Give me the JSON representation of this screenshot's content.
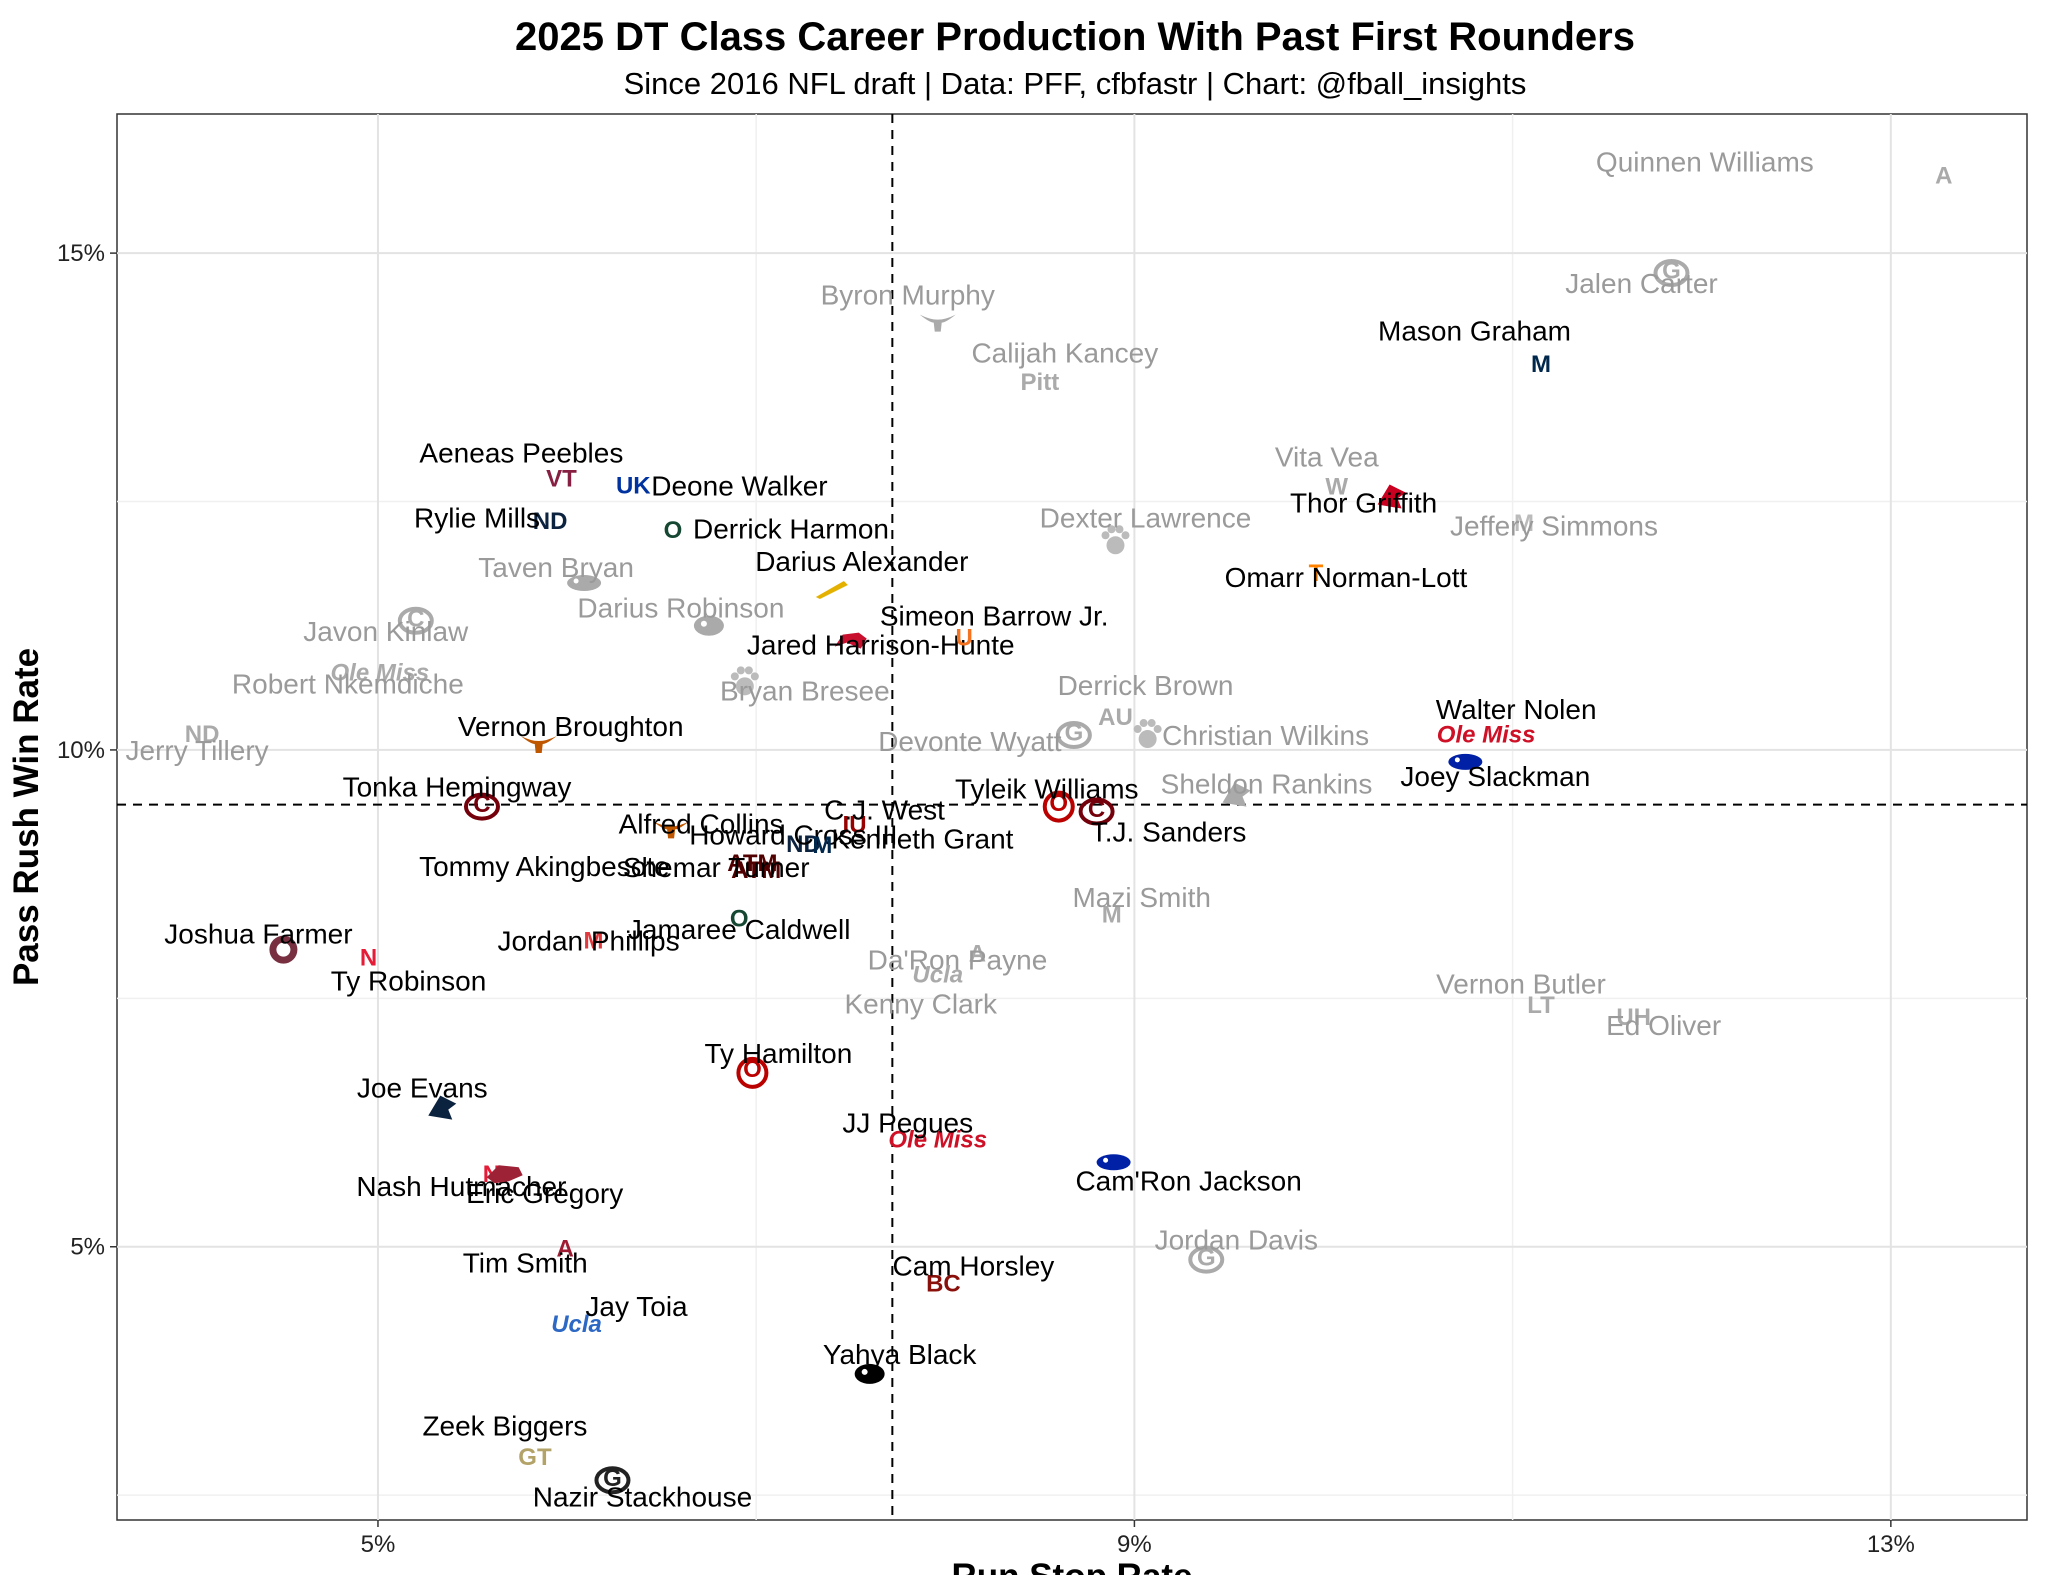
{
  "chart_data": {
    "type": "scatter",
    "title": "2025 DT Class Career Production With Past First Rounders",
    "subtitle": "Since 2016 NFL draft | Data: PFF, cfbfastr | Chart: @fball_insights",
    "xlabel": "Run Stop Rate",
    "ylabel": "Pass Rush Win Rate",
    "xlim": [
      3.62,
      13.72
    ],
    "ylim": [
      2.25,
      16.4
    ],
    "xticks": [
      5,
      9,
      13
    ],
    "xtick_labels": [
      "5%",
      "9%",
      "13%"
    ],
    "yticks": [
      5,
      10,
      15
    ],
    "ytick_labels": [
      "5%",
      "10%",
      "15%"
    ],
    "grid": true,
    "ref_lines": {
      "x": 7.72,
      "y": 9.45
    },
    "colors": {
      "current_class": "#000000",
      "past_first_rounders": "#9a9a9a"
    },
    "points": [
      {
        "name": "Quinnen Williams",
        "x": 13.28,
        "y": 15.8,
        "group": "past",
        "school": "Alabama",
        "logo": "A",
        "logo_color": "#aaaaaa"
      },
      {
        "name": "Byron Murphy",
        "x": 7.96,
        "y": 14.3,
        "group": "past",
        "school": "Texas",
        "logo": "longhorn",
        "logo_color": "#aaaaaa"
      },
      {
        "name": "Jalen Carter",
        "x": 11.84,
        "y": 14.8,
        "group": "past",
        "school": "Georgia",
        "logo": "G",
        "logo_color": "#aaaaaa"
      },
      {
        "name": "Mason Graham",
        "x": 11.15,
        "y": 13.9,
        "group": "current",
        "school": "Michigan",
        "logo": "M",
        "logo_color": "#00274c"
      },
      {
        "name": "Calijah Kancey",
        "x": 8.5,
        "y": 13.68,
        "group": "past",
        "school": "Pitt",
        "logo": "Pitt",
        "logo_color": "#aaaaaa"
      },
      {
        "name": "Aeneas Peebles",
        "x": 5.97,
        "y": 12.75,
        "group": "current",
        "school": "Virginia Tech",
        "logo": "VT",
        "logo_color": "#861f41"
      },
      {
        "name": "Deone Walker",
        "x": 6.35,
        "y": 12.68,
        "group": "current",
        "school": "Kentucky",
        "logo": "UK",
        "logo_color": "#0033a0"
      },
      {
        "name": "Rylie Mills",
        "x": 5.91,
        "y": 12.32,
        "group": "current",
        "school": "Notre Dame",
        "logo": "ND",
        "logo_color": "#0c2340"
      },
      {
        "name": "Derrick Harmon",
        "x": 6.56,
        "y": 12.23,
        "group": "current",
        "school": "Oregon",
        "logo": "O",
        "logo_color": "#154733"
      },
      {
        "name": "Vita Vea",
        "x": 10.07,
        "y": 12.67,
        "group": "past",
        "school": "Washington",
        "logo": "W",
        "logo_color": "#aaaaaa"
      },
      {
        "name": "Thor Griffith",
        "x": 10.36,
        "y": 12.55,
        "group": "current",
        "school": "Louisville",
        "logo": "bird",
        "logo_color": "#c9001f"
      },
      {
        "name": "Dexter Lawrence",
        "x": 8.9,
        "y": 12.1,
        "group": "past",
        "school": "Clemson",
        "logo": "paw",
        "logo_color": "#bbbbbb"
      },
      {
        "name": "Jeffery Simmons",
        "x": 11.06,
        "y": 12.3,
        "group": "past",
        "school": "Mississippi State",
        "logo": "M",
        "logo_color": "#bbbbbb"
      },
      {
        "name": "Omarr Norman-Lott",
        "x": 9.96,
        "y": 11.8,
        "group": "current",
        "school": "Tennessee",
        "logo": "T",
        "logo_color": "#ff8200"
      },
      {
        "name": "Taven Bryan",
        "x": 6.09,
        "y": 11.68,
        "group": "past",
        "school": "Florida",
        "logo": "gator",
        "logo_color": "#aaaaaa"
      },
      {
        "name": "Darius Alexander",
        "x": 7.4,
        "y": 11.62,
        "group": "current",
        "school": "Toledo",
        "logo": "rocket",
        "logo_color": "#e5b100"
      },
      {
        "name": "Javon Kinlaw",
        "x": 5.2,
        "y": 11.3,
        "group": "past",
        "school": "South Carolina",
        "logo": "C",
        "logo_color": "#aaaaaa"
      },
      {
        "name": "Darius Robinson",
        "x": 6.75,
        "y": 11.25,
        "group": "past",
        "school": "Missouri",
        "logo": "tiger",
        "logo_color": "#aaaaaa"
      },
      {
        "name": "Jared Harrison-Hunte",
        "x": 7.5,
        "y": 11.1,
        "group": "current",
        "school": "SMU",
        "logo": "mustang",
        "logo_color": "#c8102e"
      },
      {
        "name": "Simeon Barrow Jr.",
        "x": 8.1,
        "y": 11.15,
        "group": "current",
        "school": "Miami",
        "logo": "U",
        "logo_color": "#f47321"
      },
      {
        "name": "Robert Nkemdiche",
        "x": 5.01,
        "y": 10.75,
        "group": "past",
        "school": "Ole Miss",
        "logo": "Ole Miss",
        "logo_color": "#aaaaaa"
      },
      {
        "name": "Bryan Bresee",
        "x": 6.94,
        "y": 10.68,
        "group": "past",
        "school": "Clemson",
        "logo": "paw",
        "logo_color": "#bbbbbb"
      },
      {
        "name": "Derrick Brown",
        "x": 8.9,
        "y": 10.35,
        "group": "past",
        "school": "Auburn",
        "logo": "AU",
        "logo_color": "#aaaaaa"
      },
      {
        "name": "Jerry Tillery",
        "x": 4.07,
        "y": 10.18,
        "group": "past",
        "school": "Notre Dame",
        "logo": "ND",
        "logo_color": "#aaaaaa"
      },
      {
        "name": "Vernon Broughton",
        "x": 5.85,
        "y": 10.06,
        "group": "current",
        "school": "Texas",
        "logo": "longhorn",
        "logo_color": "#bf5700"
      },
      {
        "name": "Devonte Wyatt",
        "x": 8.68,
        "y": 10.15,
        "group": "past",
        "school": "Georgia",
        "logo": "G",
        "logo_color": "#aaaaaa"
      },
      {
        "name": "Christian Wilkins",
        "x": 9.07,
        "y": 10.15,
        "group": "past",
        "school": "Clemson",
        "logo": "paw",
        "logo_color": "#bbbbbb"
      },
      {
        "name": "Walter Nolen",
        "x": 10.86,
        "y": 10.13,
        "group": "current",
        "school": "Ole Miss",
        "logo": "Ole Miss",
        "logo_color": "#ce1126"
      },
      {
        "name": "Joey Slackman",
        "x": 10.75,
        "y": 9.88,
        "group": "current",
        "school": "Florida",
        "logo": "gator",
        "logo_color": "#0021a5"
      },
      {
        "name": "Tonka Hemingway",
        "x": 5.55,
        "y": 9.43,
        "group": "current",
        "school": "South Carolina",
        "logo": "C",
        "logo_color": "#73000a"
      },
      {
        "name": "Sheldon Rankins",
        "x": 9.54,
        "y": 9.55,
        "group": "past",
        "school": "Louisville",
        "logo": "bird",
        "logo_color": "#aaaaaa"
      },
      {
        "name": "Tyleik Williams",
        "x": 8.6,
        "y": 9.43,
        "group": "current",
        "school": "Ohio State",
        "logo": "OSU",
        "logo_color": "#bb0000"
      },
      {
        "name": "T.J. Sanders",
        "x": 8.8,
        "y": 9.38,
        "group": "current",
        "school": "South Carolina",
        "logo": "C",
        "logo_color": "#73000a"
      },
      {
        "name": "Alfred Collins",
        "x": 6.55,
        "y": 9.2,
        "group": "current",
        "school": "Texas",
        "logo": "longhorn",
        "logo_color": "#bf5700"
      },
      {
        "name": "C.J. West",
        "x": 7.52,
        "y": 9.27,
        "group": "current",
        "school": "Indiana",
        "logo": "IU",
        "logo_color": "#990000"
      },
      {
        "name": "Howard Cross III",
        "x": 7.25,
        "y": 9.07,
        "group": "current",
        "school": "Notre Dame",
        "logo": "ND",
        "logo_color": "#0c2340"
      },
      {
        "name": "Kenneth Grant",
        "x": 7.35,
        "y": 9.06,
        "group": "current",
        "school": "Michigan",
        "logo": "M",
        "logo_color": "#00274c"
      },
      {
        "name": "Tommy Akingbesote",
        "x": 6.98,
        "y": 8.85,
        "group": "current",
        "school": "Texas A&M",
        "logo": "ATM",
        "logo_color": "#500000"
      },
      {
        "name": "Shemar Turner",
        "x": 7.0,
        "y": 8.78,
        "group": "current",
        "school": "Texas A&M",
        "logo": "ATM",
        "logo_color": "#500000"
      },
      {
        "name": "Mazi Smith",
        "x": 8.88,
        "y": 8.36,
        "group": "past",
        "school": "Michigan",
        "logo": "M",
        "logo_color": "#aaaaaa"
      },
      {
        "name": "Jamaree Caldwell",
        "x": 6.91,
        "y": 8.32,
        "group": "current",
        "school": "Oregon",
        "logo": "O",
        "logo_color": "#154733"
      },
      {
        "name": "Joshua Farmer",
        "x": 4.5,
        "y": 7.99,
        "group": "current",
        "school": "Florida State",
        "logo": "FSU",
        "logo_color": "#782f40"
      },
      {
        "name": "Ty Robinson",
        "x": 4.95,
        "y": 7.93,
        "group": "current",
        "school": "Nebraska",
        "logo": "N",
        "logo_color": "#e41c38"
      },
      {
        "name": "Jordan Phillips",
        "x": 6.14,
        "y": 8.1,
        "group": "current",
        "school": "Maryland",
        "logo": "M",
        "logo_color": "#e03a3e"
      },
      {
        "name": "Da'Ron Payne",
        "x": 8.17,
        "y": 7.97,
        "group": "past",
        "school": "Alabama",
        "logo": "A",
        "logo_color": "#aaaaaa"
      },
      {
        "name": "Kenny Clark",
        "x": 7.96,
        "y": 7.72,
        "group": "past",
        "school": "UCLA",
        "logo": "Ucla",
        "logo_color": "#aaaaaa"
      },
      {
        "name": "Vernon Butler",
        "x": 11.15,
        "y": 7.45,
        "group": "past",
        "school": "Louisiana Tech",
        "logo": "LT",
        "logo_color": "#aaaaaa"
      },
      {
        "name": "Ed Oliver",
        "x": 11.64,
        "y": 7.33,
        "group": "past",
        "school": "Houston",
        "logo": "UH",
        "logo_color": "#aaaaaa"
      },
      {
        "name": "Ty Hamilton",
        "x": 6.98,
        "y": 6.75,
        "group": "current",
        "school": "Ohio State",
        "logo": "OSU",
        "logo_color": "#bb0000"
      },
      {
        "name": "Joe Evans",
        "x": 5.34,
        "y": 6.4,
        "group": "current",
        "school": "UTSA",
        "logo": "bird",
        "logo_color": "#0c2340"
      },
      {
        "name": "JJ Pegues",
        "x": 7.96,
        "y": 6.05,
        "group": "current",
        "school": "Ole Miss",
        "logo": "Ole Miss",
        "logo_color": "#ce1126"
      },
      {
        "name": "Nash Hutmacher",
        "x": 5.6,
        "y": 5.75,
        "group": "current",
        "school": "Nebraska",
        "logo": "N",
        "logo_color": "#e41c38"
      },
      {
        "name": "Cam'Ron Jackson",
        "x": 8.89,
        "y": 5.85,
        "group": "current",
        "school": "Florida",
        "logo": "gator",
        "logo_color": "#0021a5"
      },
      {
        "name": "Eric Gregory",
        "x": 5.67,
        "y": 5.74,
        "group": "current",
        "school": "Arkansas",
        "logo": "hog",
        "logo_color": "#9d2235"
      },
      {
        "name": "Jordan Davis",
        "x": 9.38,
        "y": 4.87,
        "group": "past",
        "school": "Georgia",
        "logo": "G",
        "logo_color": "#aaaaaa"
      },
      {
        "name": "Tim Smith",
        "x": 5.99,
        "y": 5.0,
        "group": "current",
        "school": "Alabama",
        "logo": "A",
        "logo_color": "#9e1b32"
      },
      {
        "name": "Cam Horsley",
        "x": 7.99,
        "y": 4.65,
        "group": "current",
        "school": "Boston College",
        "logo": "BC",
        "logo_color": "#8a100b"
      },
      {
        "name": "Jay Toia",
        "x": 6.05,
        "y": 4.2,
        "group": "current",
        "school": "UCLA",
        "logo": "Ucla",
        "logo_color": "#2d68c4"
      },
      {
        "name": "Yahya Black",
        "x": 7.6,
        "y": 3.72,
        "group": "current",
        "school": "Iowa",
        "logo": "hawk",
        "logo_color": "#000000"
      },
      {
        "name": "Zeek Biggers",
        "x": 5.83,
        "y": 2.9,
        "group": "current",
        "school": "Georgia Tech",
        "logo": "GT",
        "logo_color": "#b3a369"
      },
      {
        "name": "Nazir Stackhouse",
        "x": 6.24,
        "y": 2.65,
        "group": "current",
        "school": "Georgia",
        "logo": "G",
        "logo_color": "#222222"
      }
    ]
  }
}
